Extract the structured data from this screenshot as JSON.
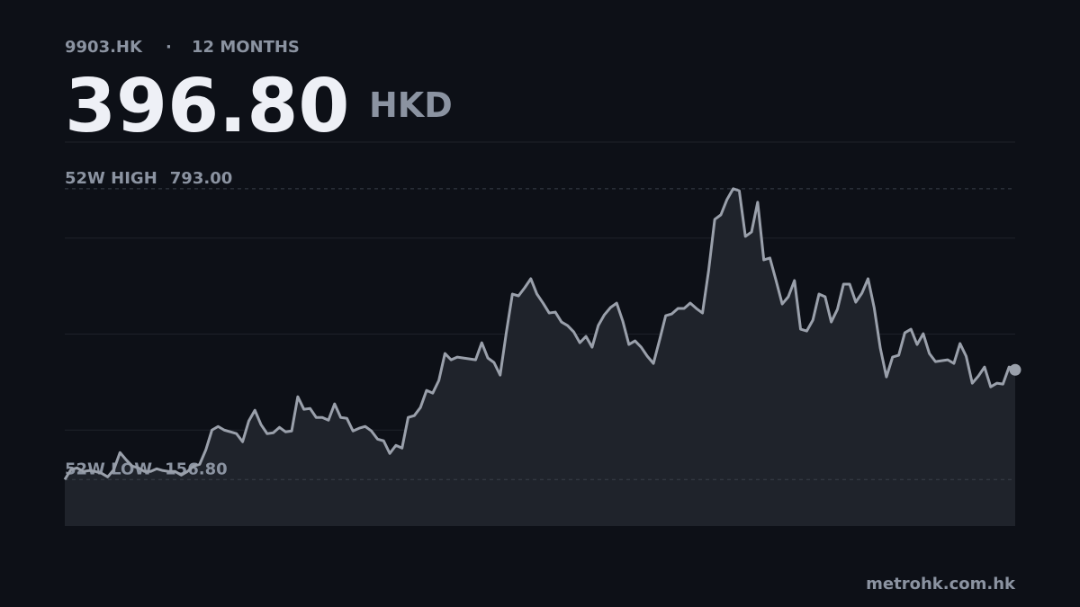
{
  "header": {
    "ticker": "9903.HK",
    "separator": "·",
    "period": "12 MONTHS",
    "price": "396.80",
    "currency": "HKD"
  },
  "chart_data": {
    "type": "line",
    "color": "#9aa0ab",
    "fill": "#1f232b",
    "ylim": [
      55,
      895
    ],
    "reference_lines": [
      {
        "name": "52W HIGH",
        "value": 793,
        "value_label": "793.00"
      },
      {
        "name": "52W LOW",
        "value": 156.8,
        "value_label": "156.80"
      }
    ],
    "values": [
      156.8,
      178.4,
      182.3,
      174.4,
      176.4,
      174.4,
      170.5,
      162.6,
      178.4,
      215.8,
      200.0,
      186.2,
      182.3,
      174.4,
      174.4,
      180.3,
      176.4,
      174.4,
      174.4,
      166.5,
      174.4,
      186.2,
      190.2,
      221.7,
      265.0,
      272.9,
      265.0,
      261.1,
      257.2,
      239.4,
      284.7,
      308.4,
      276.9,
      257.2,
      259.1,
      271.0,
      261.1,
      263.1,
      337.9,
      310.4,
      312.3,
      292.6,
      292.6,
      286.7,
      322.2,
      292.6,
      290.7,
      263.1,
      269.0,
      272.9,
      263.1,
      245.3,
      241.4,
      213.8,
      231.5,
      225.6,
      292.6,
      296.6,
      314.3,
      351.7,
      345.8,
      373.4,
      432.5,
      418.7,
      424.6,
      422.6,
      420.7,
      418.7,
      456.1,
      422.6,
      412.8,
      385.2,
      477.8,
      562.5,
      558.6,
      576.3,
      596.0,
      562.5,
      542.8,
      521.1,
      523.1,
      501.4,
      493.6,
      479.8,
      456.1,
      469.9,
      446.3,
      493.6,
      517.2,
      533.0,
      542.8,
      503.4,
      452.2,
      460.1,
      446.3,
      426.6,
      410.8,
      462.0,
      515.2,
      519.2,
      531.0,
      531.0,
      542.8,
      531.0,
      521.1,
      613.7,
      726.0,
      735.9,
      769.4,
      793.0,
      788.5,
      688.6,
      698.4,
      763.5,
      637.4,
      641.3,
      592.1,
      540.8,
      556.6,
      592.1,
      485.7,
      481.7,
      505.4,
      562.5,
      556.6,
      501.4,
      529.0,
      584.2,
      584.2,
      544.8,
      564.5,
      596.0,
      533.0,
      444.3,
      381.3,
      424.6,
      428.6,
      477.8,
      485.7,
      452.2,
      475.8,
      432.5,
      414.8,
      416.7,
      418.7,
      410.8,
      454.2,
      426.6,
      367.5,
      383.2,
      402.9,
      359.6,
      367.5,
      365.5,
      402.9,
      396.8
    ]
  },
  "footer": {
    "source": "metrohk.com.hk"
  }
}
